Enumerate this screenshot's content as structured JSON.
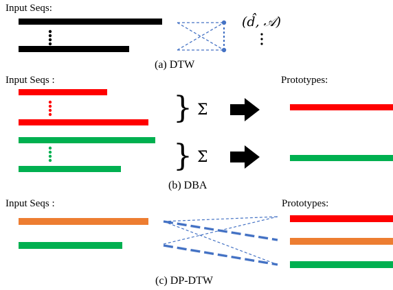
{
  "panel_a": {
    "input_label": "Input Seqs:",
    "output_label": "(d̂, 𝒜)",
    "caption": "(a) DTW"
  },
  "panel_b": {
    "input_label": "Input Seqs :",
    "prototypes_label": "Prototypes:",
    "operator": "Σ̄",
    "caption": "(b) DBA"
  },
  "panel_c": {
    "input_label": "Input Seqs :",
    "prototypes_label": "Prototypes:",
    "caption": "(c) DP-DTW"
  },
  "colors": {
    "black": "#000000",
    "red": "#ff0000",
    "green": "#00b050",
    "orange": "#ed7d31",
    "blue": "#4472c4"
  }
}
